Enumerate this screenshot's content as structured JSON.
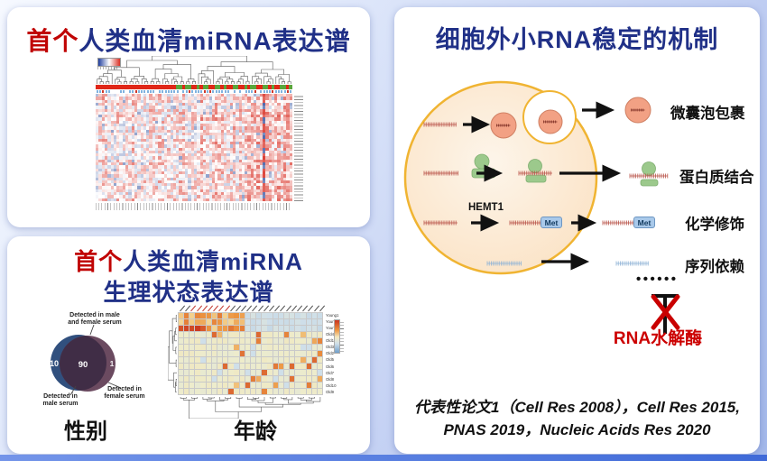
{
  "colors": {
    "title_navy": "#203087",
    "accent_red": "#c00404",
    "rnase_red": "#cc0000",
    "cell_fill": "#fdecd8",
    "cell_border": "#f0b432",
    "vesicle_orange": "#f2a184",
    "protein_green": "#9cc98c",
    "met_tag_blue": "#a9c9ea",
    "venn_blue": "#31507e",
    "venn_purple": "#6b4a60",
    "venn_overlap": "#402d46"
  },
  "serum_panel": {
    "title_accent": "首个",
    "title_rest": "人类血清miRNA表达谱",
    "heatmap": {
      "col_annotation_pattern": "RRRRRRRRRRRRRRRRRRRRRRRRRRRGGRGGRRGRGGRRGGRGRRGGRRGRGGRRGGRGRRGGRG"
    }
  },
  "physio_panel": {
    "title_accent": "首个",
    "title_rest_line1": "人类血清miRNA",
    "title_line2": "生理状态表达谱",
    "venn": {
      "label_both_line1": "Detected in male",
      "label_both_line2": "and female serum",
      "label_male_line1": "Detected in",
      "label_male_line2": "male serum",
      "label_female_line1": "Detected in",
      "label_female_line2": "female serum",
      "count_male_only": "10",
      "count_both": "90",
      "count_female_only": "1",
      "caption": "性别"
    },
    "age_heatmap": {
      "row_labels": [
        "Young1",
        "Young2",
        "Young3",
        "Old4",
        "Old1",
        "Old3",
        "Old2",
        "Old5",
        "Old6",
        "Old7",
        "Old8",
        "Old10",
        "Old9"
      ],
      "caption": "年龄"
    }
  },
  "mechanism_panel": {
    "title": "细胞外小RNA稳定的机制",
    "enzyme_label": "HEMT1",
    "met_tag": "Met",
    "labels": {
      "vesicle": "微囊泡包裹",
      "protein": "蛋白质结合",
      "chemical": "化学修饰",
      "sequence": "序列依赖"
    },
    "dots": "••••••",
    "rnase_label": "RNA水解酶",
    "references_line1": "代表性论文1（Cell Res 2008），Cell Res 2015,",
    "references_line2": "PNAS 2019，Nucleic Acids Res 2020"
  },
  "chart_data": [
    {
      "type": "venn",
      "title": "性别",
      "regions": [
        {
          "label": "Detected in male serum",
          "value": 10
        },
        {
          "label": "Detected in male and female serum",
          "value": 90
        },
        {
          "label": "Detected in female serum",
          "value": 1
        }
      ]
    },
    {
      "type": "heatmap",
      "title": "年龄",
      "row_labels": [
        "Young1",
        "Young2",
        "Young3",
        "Old4",
        "Old1",
        "Old3",
        "Old2",
        "Old5",
        "Old6",
        "Old7",
        "Old8",
        "Old10",
        "Old9"
      ]
    }
  ]
}
